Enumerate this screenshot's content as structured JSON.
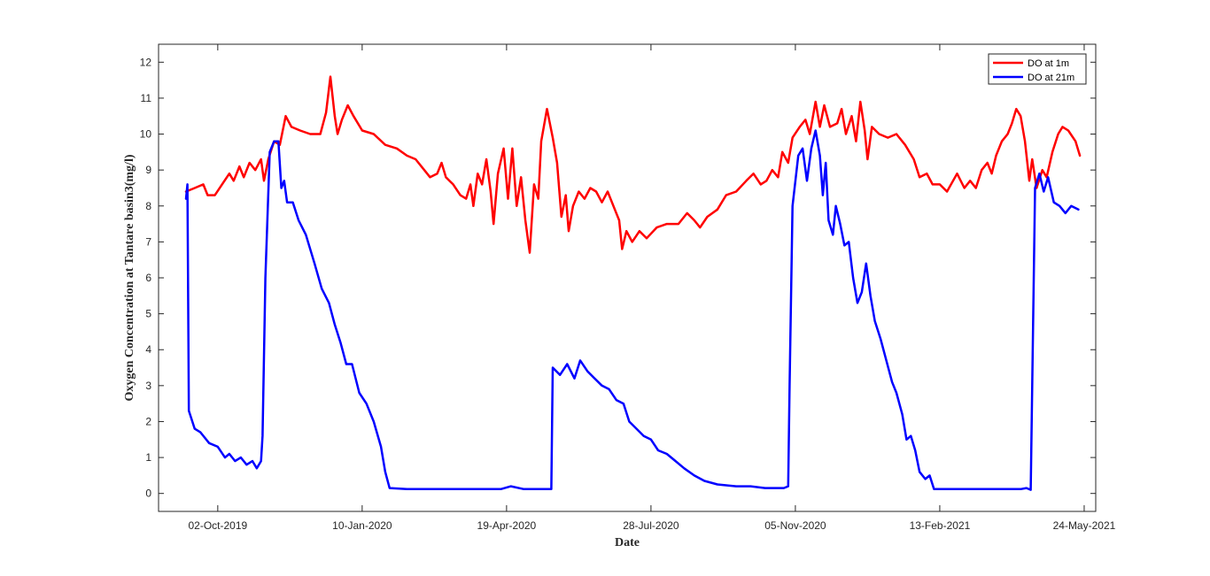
{
  "chart_data": {
    "type": "line",
    "xlabel": "Date",
    "ylabel": "Oxygen Concentration at Tantare basin3(mg/l)",
    "ylim": [
      -0.5,
      12.5
    ],
    "xlim": [
      "2019-08-22",
      "2021-06-01"
    ],
    "yticks": [
      0,
      1,
      2,
      3,
      4,
      5,
      6,
      7,
      8,
      9,
      10,
      11,
      12
    ],
    "xticks": [
      {
        "date": "2019-10-02",
        "label": "02-Oct-2019"
      },
      {
        "date": "2020-01-10",
        "label": "10-Jan-2020"
      },
      {
        "date": "2020-04-19",
        "label": "19-Apr-2020"
      },
      {
        "date": "2020-07-28",
        "label": "28-Jul-2020"
      },
      {
        "date": "2020-11-05",
        "label": "05-Nov-2020"
      },
      {
        "date": "2021-02-13",
        "label": "13-Feb-2021"
      },
      {
        "date": "2021-05-24",
        "label": "24-May-2021"
      }
    ],
    "grid": false,
    "legend_position": "top-right",
    "series": [
      {
        "name": "DO at 1m",
        "color": "#ff0000",
        "points": [
          [
            "2019-09-10",
            8.4
          ],
          [
            "2019-09-16",
            8.5
          ],
          [
            "2019-09-22",
            8.6
          ],
          [
            "2019-09-25",
            8.3
          ],
          [
            "2019-09-30",
            8.3
          ],
          [
            "2019-10-05",
            8.6
          ],
          [
            "2019-10-10",
            8.9
          ],
          [
            "2019-10-13",
            8.7
          ],
          [
            "2019-10-17",
            9.1
          ],
          [
            "2019-10-20",
            8.8
          ],
          [
            "2019-10-24",
            9.2
          ],
          [
            "2019-10-28",
            9.0
          ],
          [
            "2019-11-01",
            9.3
          ],
          [
            "2019-11-03",
            8.7
          ],
          [
            "2019-11-06",
            9.3
          ],
          [
            "2019-11-10",
            9.8
          ],
          [
            "2019-11-14",
            9.7
          ],
          [
            "2019-11-18",
            10.5
          ],
          [
            "2019-11-22",
            10.2
          ],
          [
            "2019-11-28",
            10.1
          ],
          [
            "2019-12-05",
            10.0
          ],
          [
            "2019-12-12",
            10.0
          ],
          [
            "2019-12-16",
            10.6
          ],
          [
            "2019-12-19",
            11.6
          ],
          [
            "2019-12-22",
            10.5
          ],
          [
            "2019-12-24",
            10.0
          ],
          [
            "2019-12-27",
            10.4
          ],
          [
            "2019-12-31",
            10.8
          ],
          [
            "2020-01-04",
            10.5
          ],
          [
            "2020-01-10",
            10.1
          ],
          [
            "2020-01-18",
            10.0
          ],
          [
            "2020-01-26",
            9.7
          ],
          [
            "2020-02-03",
            9.6
          ],
          [
            "2020-02-10",
            9.4
          ],
          [
            "2020-02-16",
            9.3
          ],
          [
            "2020-02-22",
            9.0
          ],
          [
            "2020-02-26",
            8.8
          ],
          [
            "2020-03-02",
            8.9
          ],
          [
            "2020-03-05",
            9.2
          ],
          [
            "2020-03-08",
            8.8
          ],
          [
            "2020-03-13",
            8.6
          ],
          [
            "2020-03-18",
            8.3
          ],
          [
            "2020-03-22",
            8.2
          ],
          [
            "2020-03-25",
            8.6
          ],
          [
            "2020-03-27",
            8.0
          ],
          [
            "2020-03-30",
            8.9
          ],
          [
            "2020-04-02",
            8.6
          ],
          [
            "2020-04-05",
            9.3
          ],
          [
            "2020-04-08",
            8.4
          ],
          [
            "2020-04-10",
            7.5
          ],
          [
            "2020-04-13",
            8.9
          ],
          [
            "2020-04-17",
            9.6
          ],
          [
            "2020-04-20",
            8.2
          ],
          [
            "2020-04-23",
            9.6
          ],
          [
            "2020-04-26",
            8.0
          ],
          [
            "2020-04-29",
            8.8
          ],
          [
            "2020-05-02",
            7.6
          ],
          [
            "2020-05-05",
            6.7
          ],
          [
            "2020-05-08",
            8.6
          ],
          [
            "2020-05-11",
            8.2
          ],
          [
            "2020-05-13",
            9.8
          ],
          [
            "2020-05-17",
            10.7
          ],
          [
            "2020-05-21",
            9.9
          ],
          [
            "2020-05-24",
            9.2
          ],
          [
            "2020-05-27",
            7.7
          ],
          [
            "2020-05-30",
            8.3
          ],
          [
            "2020-06-01",
            7.3
          ],
          [
            "2020-06-04",
            8.0
          ],
          [
            "2020-06-08",
            8.4
          ],
          [
            "2020-06-12",
            8.2
          ],
          [
            "2020-06-16",
            8.5
          ],
          [
            "2020-06-20",
            8.4
          ],
          [
            "2020-06-24",
            8.1
          ],
          [
            "2020-06-28",
            8.4
          ],
          [
            "2020-07-02",
            8.0
          ],
          [
            "2020-07-06",
            7.6
          ],
          [
            "2020-07-08",
            6.8
          ],
          [
            "2020-07-11",
            7.3
          ],
          [
            "2020-07-15",
            7.0
          ],
          [
            "2020-07-20",
            7.3
          ],
          [
            "2020-07-25",
            7.1
          ],
          [
            "2020-08-01",
            7.4
          ],
          [
            "2020-08-08",
            7.5
          ],
          [
            "2020-08-16",
            7.5
          ],
          [
            "2020-08-22",
            7.8
          ],
          [
            "2020-08-27",
            7.6
          ],
          [
            "2020-08-31",
            7.4
          ],
          [
            "2020-09-05",
            7.7
          ],
          [
            "2020-09-12",
            7.9
          ],
          [
            "2020-09-18",
            8.3
          ],
          [
            "2020-09-25",
            8.4
          ],
          [
            "2020-10-02",
            8.7
          ],
          [
            "2020-10-07",
            8.9
          ],
          [
            "2020-10-12",
            8.6
          ],
          [
            "2020-10-16",
            8.7
          ],
          [
            "2020-10-20",
            9.0
          ],
          [
            "2020-10-24",
            8.8
          ],
          [
            "2020-10-27",
            9.5
          ],
          [
            "2020-10-31",
            9.2
          ],
          [
            "2020-11-03",
            9.9
          ],
          [
            "2020-11-08",
            10.2
          ],
          [
            "2020-11-12",
            10.4
          ],
          [
            "2020-11-15",
            10.0
          ],
          [
            "2020-11-19",
            10.9
          ],
          [
            "2020-11-22",
            10.2
          ],
          [
            "2020-11-25",
            10.8
          ],
          [
            "2020-11-29",
            10.2
          ],
          [
            "2020-12-04",
            10.3
          ],
          [
            "2020-12-07",
            10.7
          ],
          [
            "2020-12-10",
            10.0
          ],
          [
            "2020-12-14",
            10.5
          ],
          [
            "2020-12-17",
            9.8
          ],
          [
            "2020-12-20",
            10.9
          ],
          [
            "2020-12-23",
            10.1
          ],
          [
            "2020-12-25",
            9.3
          ],
          [
            "2020-12-28",
            10.2
          ],
          [
            "2021-01-02",
            10.0
          ],
          [
            "2021-01-08",
            9.9
          ],
          [
            "2021-01-14",
            10.0
          ],
          [
            "2021-01-20",
            9.7
          ],
          [
            "2021-01-26",
            9.3
          ],
          [
            "2021-01-30",
            8.8
          ],
          [
            "2021-02-04",
            8.9
          ],
          [
            "2021-02-08",
            8.6
          ],
          [
            "2021-02-13",
            8.6
          ],
          [
            "2021-02-18",
            8.4
          ],
          [
            "2021-02-25",
            8.9
          ],
          [
            "2021-03-02",
            8.5
          ],
          [
            "2021-03-06",
            8.7
          ],
          [
            "2021-03-10",
            8.5
          ],
          [
            "2021-03-14",
            9.0
          ],
          [
            "2021-03-18",
            9.2
          ],
          [
            "2021-03-21",
            8.9
          ],
          [
            "2021-03-24",
            9.4
          ],
          [
            "2021-03-28",
            9.8
          ],
          [
            "2021-04-01",
            10.0
          ],
          [
            "2021-04-04",
            10.3
          ],
          [
            "2021-04-07",
            10.7
          ],
          [
            "2021-04-10",
            10.5
          ],
          [
            "2021-04-13",
            9.8
          ],
          [
            "2021-04-16",
            8.7
          ],
          [
            "2021-04-18",
            9.3
          ],
          [
            "2021-04-21",
            8.5
          ],
          [
            "2021-04-25",
            9.0
          ],
          [
            "2021-04-28",
            8.8
          ],
          [
            "2021-05-02",
            9.5
          ],
          [
            "2021-05-06",
            10.0
          ],
          [
            "2021-05-09",
            10.2
          ],
          [
            "2021-05-13",
            10.1
          ],
          [
            "2021-05-18",
            9.8
          ],
          [
            "2021-05-21",
            9.4
          ]
        ]
      },
      {
        "name": "DO at 21m",
        "color": "#0000ff",
        "points": [
          [
            "2019-09-10",
            8.2
          ],
          [
            "2019-09-11",
            8.6
          ],
          [
            "2019-09-12",
            2.3
          ],
          [
            "2019-09-16",
            1.8
          ],
          [
            "2019-09-20",
            1.7
          ],
          [
            "2019-09-26",
            1.4
          ],
          [
            "2019-10-02",
            1.3
          ],
          [
            "2019-10-07",
            1.0
          ],
          [
            "2019-10-10",
            1.1
          ],
          [
            "2019-10-14",
            0.9
          ],
          [
            "2019-10-18",
            1.0
          ],
          [
            "2019-10-22",
            0.8
          ],
          [
            "2019-10-26",
            0.9
          ],
          [
            "2019-10-29",
            0.7
          ],
          [
            "2019-11-01",
            0.9
          ],
          [
            "2019-11-02",
            1.6
          ],
          [
            "2019-11-04",
            6.0
          ],
          [
            "2019-11-07",
            9.5
          ],
          [
            "2019-11-10",
            9.8
          ],
          [
            "2019-11-13",
            9.8
          ],
          [
            "2019-11-15",
            8.5
          ],
          [
            "2019-11-17",
            8.7
          ],
          [
            "2019-11-19",
            8.1
          ],
          [
            "2019-11-23",
            8.1
          ],
          [
            "2019-11-27",
            7.6
          ],
          [
            "2019-12-02",
            7.2
          ],
          [
            "2019-12-08",
            6.4
          ],
          [
            "2019-12-13",
            5.7
          ],
          [
            "2019-12-18",
            5.3
          ],
          [
            "2019-12-22",
            4.7
          ],
          [
            "2019-12-26",
            4.2
          ],
          [
            "2019-12-30",
            3.6
          ],
          [
            "2020-01-03",
            3.6
          ],
          [
            "2020-01-08",
            2.8
          ],
          [
            "2020-01-13",
            2.5
          ],
          [
            "2020-01-18",
            2.0
          ],
          [
            "2020-01-23",
            1.3
          ],
          [
            "2020-01-26",
            0.6
          ],
          [
            "2020-01-29",
            0.15
          ],
          [
            "2020-02-10",
            0.12
          ],
          [
            "2020-03-15",
            0.12
          ],
          [
            "2020-04-15",
            0.12
          ],
          [
            "2020-04-22",
            0.2
          ],
          [
            "2020-05-01",
            0.12
          ],
          [
            "2020-05-15",
            0.12
          ],
          [
            "2020-05-20",
            0.12
          ],
          [
            "2020-05-21",
            3.5
          ],
          [
            "2020-05-26",
            3.3
          ],
          [
            "2020-05-31",
            3.6
          ],
          [
            "2020-06-05",
            3.2
          ],
          [
            "2020-06-09",
            3.7
          ],
          [
            "2020-06-14",
            3.4
          ],
          [
            "2020-06-19",
            3.2
          ],
          [
            "2020-06-24",
            3.0
          ],
          [
            "2020-06-29",
            2.9
          ],
          [
            "2020-07-04",
            2.6
          ],
          [
            "2020-07-09",
            2.5
          ],
          [
            "2020-07-13",
            2.0
          ],
          [
            "2020-07-18",
            1.8
          ],
          [
            "2020-07-23",
            1.6
          ],
          [
            "2020-07-28",
            1.5
          ],
          [
            "2020-08-02",
            1.2
          ],
          [
            "2020-08-08",
            1.1
          ],
          [
            "2020-08-14",
            0.9
          ],
          [
            "2020-08-20",
            0.7
          ],
          [
            "2020-08-27",
            0.5
          ],
          [
            "2020-09-03",
            0.35
          ],
          [
            "2020-09-12",
            0.25
          ],
          [
            "2020-09-25",
            0.2
          ],
          [
            "2020-10-05",
            0.2
          ],
          [
            "2020-10-15",
            0.15
          ],
          [
            "2020-10-28",
            0.15
          ],
          [
            "2020-10-31",
            0.2
          ],
          [
            "2020-11-01",
            3.0
          ],
          [
            "2020-11-03",
            8.0
          ],
          [
            "2020-11-07",
            9.4
          ],
          [
            "2020-11-10",
            9.6
          ],
          [
            "2020-11-13",
            8.7
          ],
          [
            "2020-11-16",
            9.6
          ],
          [
            "2020-11-19",
            10.1
          ],
          [
            "2020-11-22",
            9.4
          ],
          [
            "2020-11-24",
            8.3
          ],
          [
            "2020-11-26",
            9.2
          ],
          [
            "2020-11-28",
            7.6
          ],
          [
            "2020-12-01",
            7.2
          ],
          [
            "2020-12-03",
            8.0
          ],
          [
            "2020-12-06",
            7.5
          ],
          [
            "2020-12-09",
            6.9
          ],
          [
            "2020-12-12",
            7.0
          ],
          [
            "2020-12-15",
            6.0
          ],
          [
            "2020-12-18",
            5.3
          ],
          [
            "2020-12-21",
            5.6
          ],
          [
            "2020-12-24",
            6.4
          ],
          [
            "2020-12-27",
            5.5
          ],
          [
            "2020-12-30",
            4.8
          ],
          [
            "2021-01-03",
            4.3
          ],
          [
            "2021-01-07",
            3.7
          ],
          [
            "2021-01-11",
            3.1
          ],
          [
            "2021-01-14",
            2.8
          ],
          [
            "2021-01-18",
            2.2
          ],
          [
            "2021-01-21",
            1.5
          ],
          [
            "2021-01-24",
            1.6
          ],
          [
            "2021-01-27",
            1.2
          ],
          [
            "2021-01-30",
            0.6
          ],
          [
            "2021-02-03",
            0.4
          ],
          [
            "2021-02-06",
            0.5
          ],
          [
            "2021-02-09",
            0.12
          ],
          [
            "2021-02-25",
            0.12
          ],
          [
            "2021-03-20",
            0.12
          ],
          [
            "2021-04-10",
            0.12
          ],
          [
            "2021-04-14",
            0.15
          ],
          [
            "2021-04-17",
            0.1
          ],
          [
            "2021-04-18",
            3.0
          ],
          [
            "2021-04-20",
            8.5
          ],
          [
            "2021-04-23",
            8.9
          ],
          [
            "2021-04-26",
            8.4
          ],
          [
            "2021-04-29",
            8.8
          ],
          [
            "2021-05-03",
            8.1
          ],
          [
            "2021-05-07",
            8.0
          ],
          [
            "2021-05-11",
            7.8
          ],
          [
            "2021-05-15",
            8.0
          ],
          [
            "2021-05-20",
            7.9
          ]
        ]
      }
    ]
  }
}
